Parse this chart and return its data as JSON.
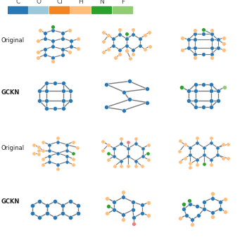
{
  "legend_labels": [
    "C",
    "O",
    "Cl",
    "H",
    "N",
    "F"
  ],
  "legend_colors": [
    "#2878b5",
    "#9ac9db",
    "#f28522",
    "#ffbe7a",
    "#2ca02c",
    "#91cc75"
  ],
  "row_labels": [
    "Original",
    "GCKN",
    "Original",
    "GCKN"
  ],
  "C": "#2878b5",
  "O": "#9ac9db",
  "Cl": "#f28522",
  "H": "#ffbe7a",
  "N": "#2ca02c",
  "F": "#91cc75",
  "edge_color": "#7a7a7a",
  "bg": "#ffffff"
}
